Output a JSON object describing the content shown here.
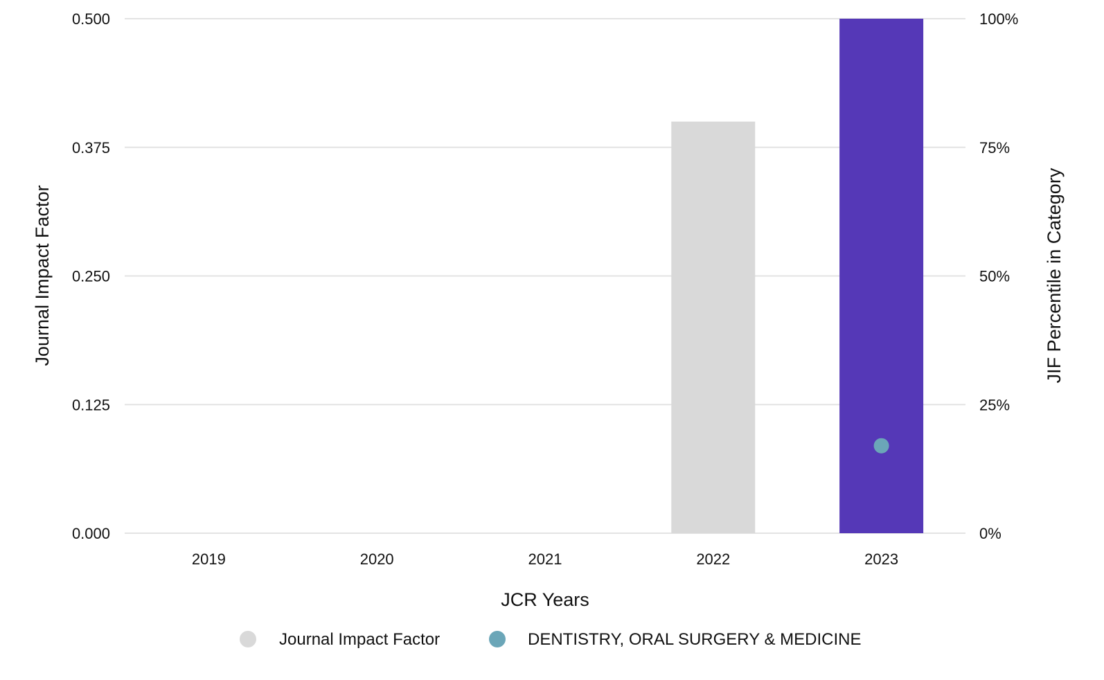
{
  "chart_data": {
    "type": "bar",
    "categories": [
      "2019",
      "2020",
      "2021",
      "2022",
      "2023"
    ],
    "series": [
      {
        "name": "Journal Impact Factor",
        "values": [
          null,
          null,
          null,
          0.4,
          0.5
        ],
        "colors": [
          "#d9d9d9",
          "#d9d9d9",
          "#d9d9d9",
          "#d9d9d9",
          "#5538b7"
        ]
      },
      {
        "name": "DENTISTRY, ORAL SURGERY & MEDICINE",
        "type": "scatter",
        "axis": "right",
        "values": [
          null,
          null,
          null,
          null,
          17
        ],
        "color": "#6ba6b8"
      }
    ],
    "xlabel": "JCR Years",
    "ylabel": "Journal Impact Factor",
    "ylabel_right": "JIF Percentile in Category",
    "ylim": [
      0,
      0.5
    ],
    "ylim_right": [
      0,
      100
    ],
    "yticks": [
      "0.000",
      "0.125",
      "0.250",
      "0.375",
      "0.500"
    ],
    "yticks_right": [
      "0%",
      "25%",
      "50%",
      "75%",
      "100%"
    ],
    "grid": true,
    "legend_position": "bottom",
    "legend": [
      {
        "label": "Journal Impact Factor",
        "color": "#d9d9d9"
      },
      {
        "label": "DENTISTRY, ORAL SURGERY & MEDICINE",
        "color": "#6ba6b8"
      }
    ]
  }
}
